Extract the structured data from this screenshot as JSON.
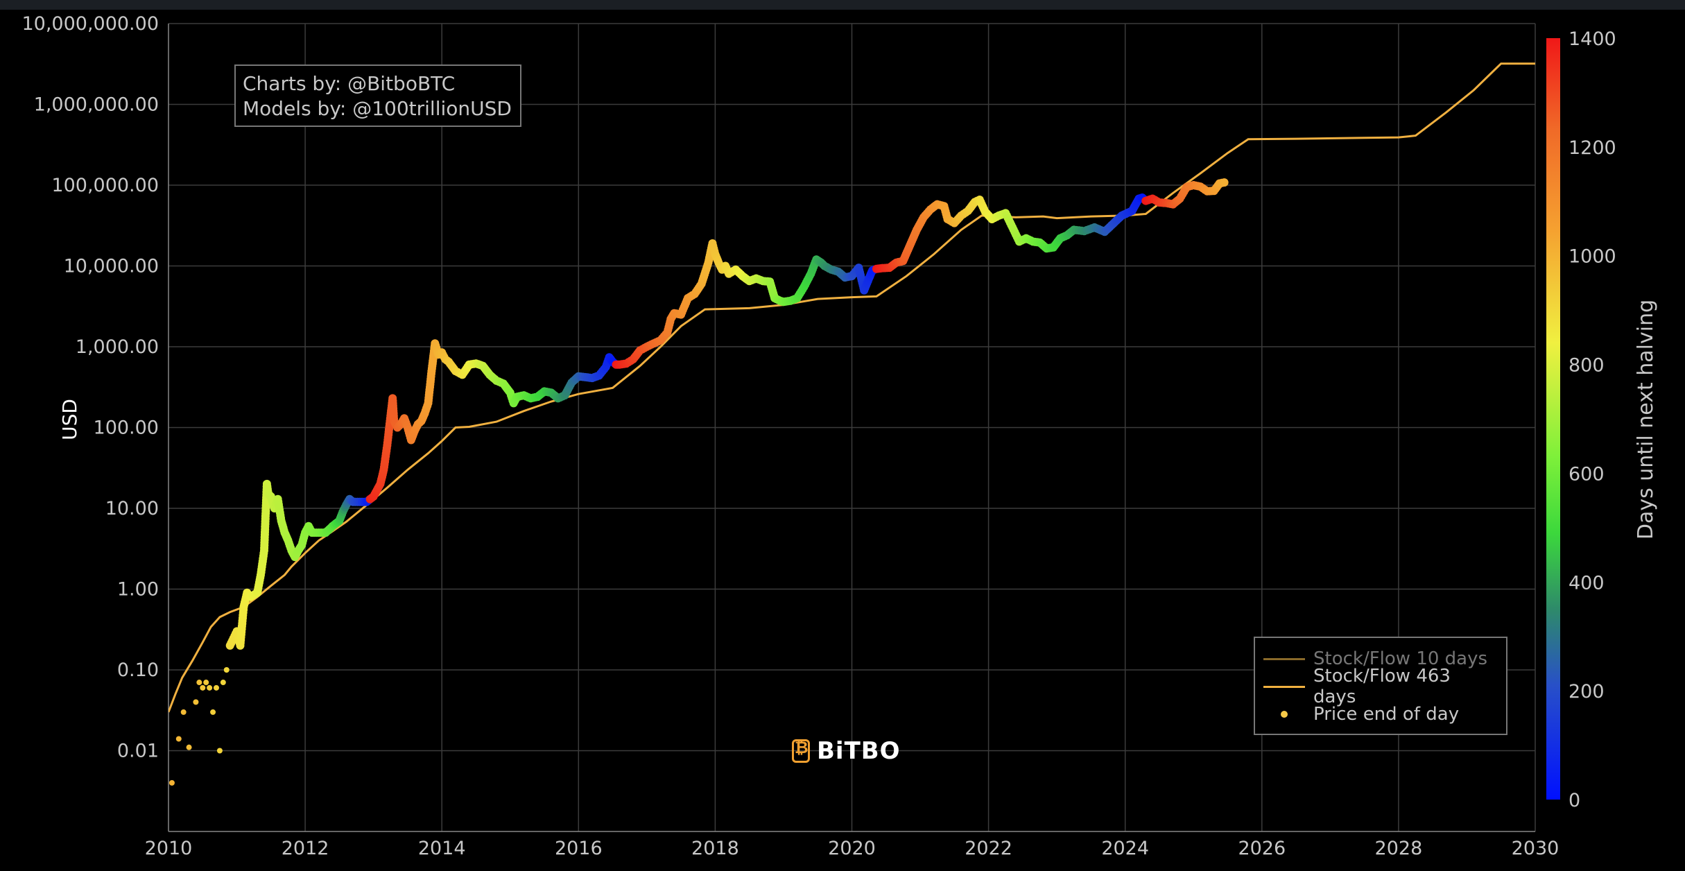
{
  "watermark": "BiTBO",
  "credits": {
    "line1": "Charts by: @BitboBTC",
    "line2": "Models by: @100trillionUSD"
  },
  "legend": {
    "items": [
      {
        "label": "Stock/Flow 10 days",
        "color": "#8a6a2a",
        "kind": "line",
        "dimmed": true
      },
      {
        "label": "Stock/Flow 463 days",
        "color": "#f0b040",
        "kind": "line",
        "dimmed": false
      },
      {
        "label": "Price end of day",
        "color": "#f7c948",
        "kind": "dot",
        "dimmed": false
      }
    ]
  },
  "colorbar": {
    "title": "Days until next halving",
    "ticks": [
      "0",
      "200",
      "400",
      "600",
      "800",
      "1000",
      "1200",
      "1400"
    ],
    "min": 0,
    "max": 1400
  },
  "chart_data": {
    "type": "scatter",
    "ylabel": "USD",
    "yscale": "log",
    "ylim": [
      0.001,
      10000000
    ],
    "xlim": [
      2010,
      2030
    ],
    "y_tick_labels": [
      "0.01",
      "0.10",
      "1.00",
      "10.00",
      "100.00",
      "1,000.00",
      "10,000.00",
      "100,000.00",
      "1,000,000.00",
      "10,000,000.00"
    ],
    "y_tick_values": [
      0.01,
      0.1,
      1,
      10,
      100,
      1000,
      10000,
      100000,
      1000000,
      10000000
    ],
    "x_tick_labels": [
      "2010",
      "2012",
      "2014",
      "2016",
      "2018",
      "2020",
      "2022",
      "2024",
      "2026",
      "2028",
      "2030"
    ],
    "x_tick_values": [
      2010,
      2012,
      2014,
      2016,
      2018,
      2020,
      2022,
      2024,
      2026,
      2028,
      2030
    ],
    "grid": true,
    "legend_position": "bottom-right",
    "halvings": [
      2012.91,
      2016.52,
      2020.36,
      2024.3,
      2028.3
    ],
    "model_series": {
      "name": "Stock/Flow 463 days",
      "color": "#f0b040",
      "points": [
        [
          2010.0,
          0.03
        ],
        [
          2010.1,
          0.05
        ],
        [
          2010.2,
          0.08
        ],
        [
          2010.35,
          0.13
        ],
        [
          2010.5,
          0.22
        ],
        [
          2010.62,
          0.34
        ],
        [
          2010.75,
          0.45
        ],
        [
          2010.9,
          0.52
        ],
        [
          2011.1,
          0.6
        ],
        [
          2011.3,
          0.8
        ],
        [
          2011.5,
          1.1
        ],
        [
          2011.7,
          1.5
        ],
        [
          2011.8,
          1.9
        ],
        [
          2012.0,
          2.8
        ],
        [
          2012.2,
          4.0
        ],
        [
          2012.4,
          5.2
        ],
        [
          2012.6,
          6.8
        ],
        [
          2012.9,
          11
        ],
        [
          2013.2,
          18
        ],
        [
          2013.5,
          30
        ],
        [
          2013.8,
          48
        ],
        [
          2014.0,
          68
        ],
        [
          2014.2,
          100
        ],
        [
          2014.4,
          102
        ],
        [
          2014.8,
          118
        ],
        [
          2015.2,
          160
        ],
        [
          2015.6,
          210
        ],
        [
          2016.0,
          260
        ],
        [
          2016.5,
          310
        ],
        [
          2016.9,
          580
        ],
        [
          2017.2,
          1000
        ],
        [
          2017.5,
          1800
        ],
        [
          2017.85,
          2900
        ],
        [
          2018.5,
          3000
        ],
        [
          2019.0,
          3300
        ],
        [
          2019.5,
          3900
        ],
        [
          2020.0,
          4100
        ],
        [
          2020.36,
          4200
        ],
        [
          2020.8,
          7500
        ],
        [
          2021.2,
          14000
        ],
        [
          2021.6,
          28000
        ],
        [
          2021.9,
          42000
        ],
        [
          2022.4,
          40000
        ],
        [
          2022.8,
          41000
        ],
        [
          2023.0,
          39000
        ],
        [
          2023.5,
          41000
        ],
        [
          2024.0,
          42000
        ],
        [
          2024.3,
          44000
        ],
        [
          2024.7,
          80000
        ],
        [
          2025.1,
          140000
        ],
        [
          2025.5,
          250000
        ],
        [
          2025.8,
          370000
        ],
        [
          2026.5,
          375000
        ],
        [
          2027.5,
          385000
        ],
        [
          2028.0,
          390000
        ],
        [
          2028.25,
          410000
        ],
        [
          2028.7,
          800000
        ],
        [
          2029.1,
          1500000
        ],
        [
          2029.5,
          3200000
        ],
        [
          2030.0,
          3200000
        ]
      ]
    },
    "price_series": {
      "name": "Price end of day",
      "points": [
        [
          2010.05,
          0.004,
          1000
        ],
        [
          2010.15,
          0.014,
          990
        ],
        [
          2010.22,
          0.03,
          980
        ],
        [
          2010.3,
          0.011,
          975
        ],
        [
          2010.4,
          0.04,
          965
        ],
        [
          2010.45,
          0.07,
          960
        ],
        [
          2010.5,
          0.06,
          950
        ],
        [
          2010.55,
          0.07,
          945
        ],
        [
          2010.6,
          0.06,
          935
        ],
        [
          2010.65,
          0.03,
          930
        ],
        [
          2010.7,
          0.06,
          925
        ],
        [
          2010.75,
          0.01,
          915
        ],
        [
          2010.8,
          0.07,
          910
        ],
        [
          2010.85,
          0.1,
          905
        ],
        [
          2010.9,
          0.2,
          895
        ],
        [
          2011.0,
          0.3,
          880
        ],
        [
          2011.05,
          0.2,
          875
        ],
        [
          2011.1,
          0.6,
          860
        ],
        [
          2011.15,
          0.9,
          850
        ],
        [
          2011.2,
          0.8,
          840
        ],
        [
          2011.3,
          0.9,
          820
        ],
        [
          2011.35,
          1.5,
          810
        ],
        [
          2011.4,
          3,
          795
        ],
        [
          2011.42,
          8,
          785
        ],
        [
          2011.44,
          20,
          780
        ],
        [
          2011.46,
          15,
          770
        ],
        [
          2011.5,
          14,
          765
        ],
        [
          2011.55,
          10,
          755
        ],
        [
          2011.6,
          13,
          745
        ],
        [
          2011.65,
          7,
          735
        ],
        [
          2011.7,
          5,
          725
        ],
        [
          2011.75,
          4,
          715
        ],
        [
          2011.8,
          3,
          705
        ],
        [
          2011.85,
          2.5,
          695
        ],
        [
          2011.9,
          3,
          685
        ],
        [
          2011.95,
          3.5,
          675
        ],
        [
          2012.0,
          5,
          660
        ],
        [
          2012.05,
          6,
          650
        ],
        [
          2012.1,
          5,
          640
        ],
        [
          2012.2,
          5,
          620
        ],
        [
          2012.3,
          5,
          590
        ],
        [
          2012.4,
          6,
          550
        ],
        [
          2012.5,
          7,
          470
        ],
        [
          2012.55,
          9,
          410
        ],
        [
          2012.6,
          11,
          320
        ],
        [
          2012.65,
          13,
          250
        ],
        [
          2012.7,
          12,
          200
        ],
        [
          2012.8,
          12,
          150
        ],
        [
          2012.9,
          12,
          60
        ],
        [
          2012.95,
          13,
          1380
        ],
        [
          2013.0,
          14,
          1360
        ],
        [
          2013.1,
          20,
          1330
        ],
        [
          2013.15,
          30,
          1310
        ],
        [
          2013.2,
          60,
          1290
        ],
        [
          2013.25,
          140,
          1270
        ],
        [
          2013.28,
          230,
          1260
        ],
        [
          2013.3,
          120,
          1250
        ],
        [
          2013.35,
          100,
          1240
        ],
        [
          2013.4,
          110,
          1220
        ],
        [
          2013.45,
          130,
          1200
        ],
        [
          2013.5,
          100,
          1180
        ],
        [
          2013.55,
          70,
          1160
        ],
        [
          2013.6,
          90,
          1140
        ],
        [
          2013.65,
          110,
          1120
        ],
        [
          2013.7,
          120,
          1100
        ],
        [
          2013.75,
          150,
          1080
        ],
        [
          2013.8,
          200,
          1060
        ],
        [
          2013.85,
          500,
          1040
        ],
        [
          2013.9,
          1100,
          1020
        ],
        [
          2013.95,
          800,
          1000
        ],
        [
          2014.0,
          850,
          990
        ],
        [
          2014.05,
          700,
          970
        ],
        [
          2014.1,
          650,
          950
        ],
        [
          2014.2,
          500,
          920
        ],
        [
          2014.3,
          450,
          880
        ],
        [
          2014.4,
          600,
          840
        ],
        [
          2014.5,
          620,
          810
        ],
        [
          2014.6,
          580,
          770
        ],
        [
          2014.7,
          450,
          730
        ],
        [
          2014.8,
          380,
          700
        ],
        [
          2014.9,
          350,
          670
        ],
        [
          2015.0,
          270,
          640
        ],
        [
          2015.05,
          200,
          620
        ],
        [
          2015.1,
          240,
          600
        ],
        [
          2015.2,
          250,
          570
        ],
        [
          2015.3,
          230,
          530
        ],
        [
          2015.4,
          240,
          500
        ],
        [
          2015.5,
          280,
          470
        ],
        [
          2015.6,
          270,
          430
        ],
        [
          2015.7,
          230,
          390
        ],
        [
          2015.8,
          250,
          350
        ],
        [
          2015.9,
          360,
          300
        ],
        [
          2016.0,
          430,
          250
        ],
        [
          2016.1,
          420,
          200
        ],
        [
          2016.2,
          410,
          170
        ],
        [
          2016.3,
          440,
          130
        ],
        [
          2016.4,
          560,
          90
        ],
        [
          2016.45,
          740,
          60
        ],
        [
          2016.5,
          650,
          30
        ],
        [
          2016.55,
          600,
          1400
        ],
        [
          2016.6,
          600,
          1380
        ],
        [
          2016.7,
          620,
          1350
        ],
        [
          2016.8,
          700,
          1320
        ],
        [
          2016.9,
          900,
          1290
        ],
        [
          2017.0,
          1000,
          1260
        ],
        [
          2017.1,
          1100,
          1230
        ],
        [
          2017.2,
          1200,
          1200
        ],
        [
          2017.3,
          1500,
          1170
        ],
        [
          2017.35,
          2200,
          1150
        ],
        [
          2017.4,
          2600,
          1130
        ],
        [
          2017.5,
          2500,
          1110
        ],
        [
          2017.6,
          4000,
          1080
        ],
        [
          2017.7,
          4500,
          1050
        ],
        [
          2017.8,
          6000,
          1020
        ],
        [
          2017.9,
          11000,
          990
        ],
        [
          2017.96,
          19000,
          970
        ],
        [
          2018.0,
          14000,
          960
        ],
        [
          2018.05,
          11000,
          945
        ],
        [
          2018.1,
          9000,
          930
        ],
        [
          2018.15,
          10000,
          910
        ],
        [
          2018.2,
          8000,
          895
        ],
        [
          2018.3,
          9000,
          860
        ],
        [
          2018.4,
          7500,
          830
        ],
        [
          2018.5,
          6500,
          790
        ],
        [
          2018.6,
          7000,
          760
        ],
        [
          2018.7,
          6500,
          720
        ],
        [
          2018.8,
          6400,
          690
        ],
        [
          2018.87,
          4000,
          660
        ],
        [
          2018.95,
          3700,
          630
        ],
        [
          2019.0,
          3600,
          610
        ],
        [
          2019.1,
          3700,
          580
        ],
        [
          2019.2,
          4000,
          540
        ],
        [
          2019.3,
          5500,
          500
        ],
        [
          2019.4,
          8000,
          460
        ],
        [
          2019.48,
          12000,
          420
        ],
        [
          2019.55,
          11000,
          390
        ],
        [
          2019.6,
          10000,
          370
        ],
        [
          2019.7,
          9000,
          330
        ],
        [
          2019.8,
          8500,
          290
        ],
        [
          2019.9,
          7200,
          250
        ],
        [
          2020.0,
          7500,
          200
        ],
        [
          2020.1,
          9500,
          160
        ],
        [
          2020.18,
          5000,
          120
        ],
        [
          2020.25,
          7000,
          90
        ],
        [
          2020.3,
          8800,
          40
        ],
        [
          2020.36,
          9200,
          1400
        ],
        [
          2020.45,
          9400,
          1370
        ],
        [
          2020.55,
          9500,
          1340
        ],
        [
          2020.65,
          11000,
          1300
        ],
        [
          2020.75,
          11500,
          1260
        ],
        [
          2020.85,
          18000,
          1220
        ],
        [
          2020.95,
          28000,
          1180
        ],
        [
          2021.05,
          40000,
          1150
        ],
        [
          2021.15,
          50000,
          1110
        ],
        [
          2021.25,
          58000,
          1080
        ],
        [
          2021.35,
          55000,
          1050
        ],
        [
          2021.4,
          38000,
          1030
        ],
        [
          2021.5,
          34000,
          1000
        ],
        [
          2021.6,
          42000,
          970
        ],
        [
          2021.7,
          48000,
          940
        ],
        [
          2021.8,
          62000,
          910
        ],
        [
          2021.87,
          66000,
          890
        ],
        [
          2021.95,
          47000,
          860
        ],
        [
          2022.05,
          38000,
          830
        ],
        [
          2022.15,
          42000,
          790
        ],
        [
          2022.25,
          45000,
          760
        ],
        [
          2022.35,
          30000,
          720
        ],
        [
          2022.45,
          20000,
          690
        ],
        [
          2022.55,
          22000,
          650
        ],
        [
          2022.65,
          20000,
          610
        ],
        [
          2022.75,
          19500,
          580
        ],
        [
          2022.85,
          16500,
          540
        ],
        [
          2022.95,
          17000,
          510
        ],
        [
          2023.05,
          22000,
          470
        ],
        [
          2023.15,
          24000,
          440
        ],
        [
          2023.25,
          28000,
          400
        ],
        [
          2023.4,
          27000,
          350
        ],
        [
          2023.55,
          30000,
          300
        ],
        [
          2023.7,
          26500,
          240
        ],
        [
          2023.85,
          35000,
          180
        ],
        [
          2023.95,
          42000,
          140
        ],
        [
          2024.1,
          48000,
          90
        ],
        [
          2024.2,
          68000,
          50
        ],
        [
          2024.25,
          70000,
          20
        ],
        [
          2024.3,
          64000,
          1400
        ],
        [
          2024.4,
          68000,
          1370
        ],
        [
          2024.5,
          61000,
          1330
        ],
        [
          2024.6,
          60000,
          1300
        ],
        [
          2024.7,
          58000,
          1260
        ],
        [
          2024.8,
          68000,
          1220
        ],
        [
          2024.9,
          95000,
          1180
        ],
        [
          2025.0,
          100000,
          1150
        ],
        [
          2025.1,
          96000,
          1120
        ],
        [
          2025.2,
          84000,
          1090
        ],
        [
          2025.3,
          85000,
          1060
        ],
        [
          2025.38,
          105000,
          1030
        ],
        [
          2025.45,
          108000,
          1010
        ]
      ]
    }
  }
}
